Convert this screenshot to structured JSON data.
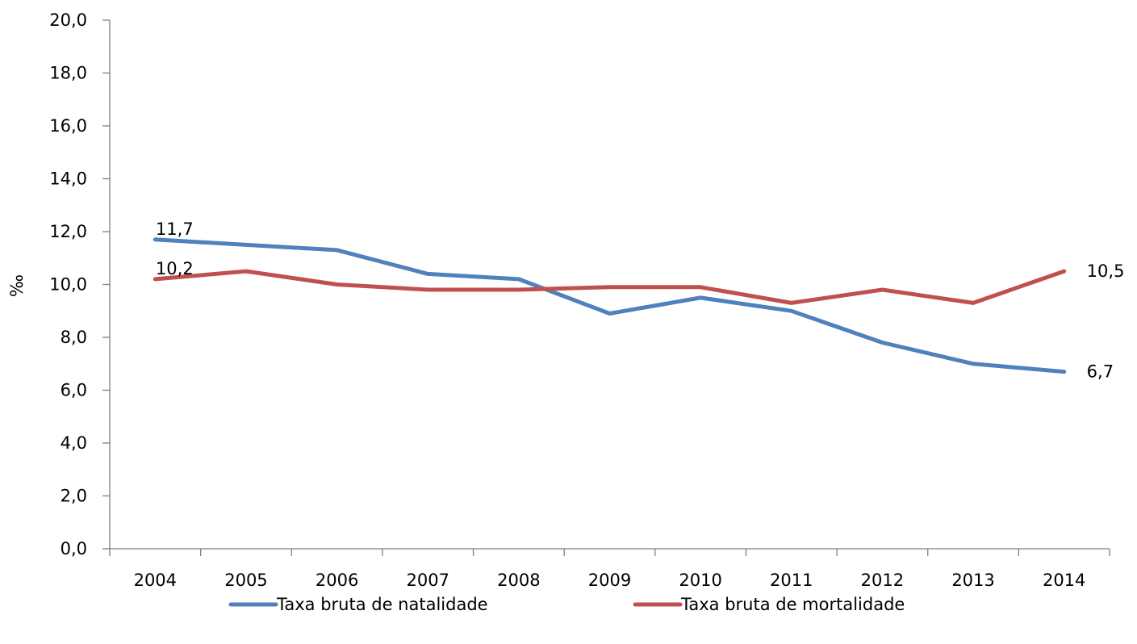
{
  "chart_data": {
    "type": "line",
    "title": "",
    "xlabel": "",
    "ylabel": "‰",
    "ylim": [
      0,
      20
    ],
    "ytick_step": 2,
    "grid": false,
    "legend_position": "bottom",
    "x": [
      "2004",
      "2005",
      "2006",
      "2007",
      "2008",
      "2009",
      "2010",
      "2011",
      "2012",
      "2013",
      "2014"
    ],
    "series": [
      {
        "name": "Taxa bruta de natalidade",
        "color": "#4f81bd",
        "values": [
          11.7,
          11.5,
          11.3,
          10.4,
          10.2,
          8.9,
          9.5,
          9.0,
          7.8,
          7.0,
          6.7
        ],
        "labels": [
          {
            "index": 0,
            "text": "11,7",
            "position": "above"
          },
          {
            "index": 10,
            "text": "6,7",
            "position": "right"
          }
        ]
      },
      {
        "name": "Taxa bruta de mortalidade",
        "color": "#c0504d",
        "values": [
          10.2,
          10.5,
          10.0,
          9.8,
          9.8,
          9.9,
          9.9,
          9.3,
          9.8,
          9.3,
          10.5
        ],
        "labels": [
          {
            "index": 0,
            "text": "10,2",
            "position": "above"
          },
          {
            "index": 10,
            "text": "10,5",
            "position": "right"
          }
        ]
      }
    ]
  }
}
